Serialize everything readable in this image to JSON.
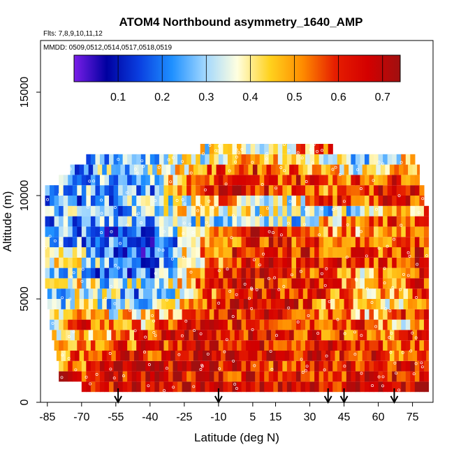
{
  "chart_data": {
    "type": "heatmap",
    "title": "ATOM4 Northbound asymmetry_1640_AMP",
    "flights_label": "Flts: 7,8,9,10,11,12",
    "dates_label": "MMDD: 0509,0512,0514,0517,0518,0519",
    "xlabel": "Latitude (deg N)",
    "ylabel": "Altitude (m)",
    "xlim": [
      -88,
      84
    ],
    "ylim": [
      0,
      17500
    ],
    "x_ticks": [
      "-85",
      "-70",
      "-55",
      "-40",
      "-25",
      "-10",
      "5",
      "15",
      "30",
      "45",
      "60",
      "75"
    ],
    "x_tick_values": [
      -85,
      -70,
      -55,
      -40,
      -25,
      -10,
      5,
      15,
      30,
      45,
      60,
      75
    ],
    "y_ticks": [
      "0",
      "5000",
      "10000",
      "15000"
    ],
    "y_tick_values": [
      0,
      5000,
      10000,
      15000
    ],
    "colorbar": {
      "ticks": [
        "0.1",
        "0.2",
        "0.3",
        "0.4",
        "0.5",
        "0.6",
        "0.7"
      ],
      "tick_values": [
        0.1,
        0.2,
        0.3,
        0.4,
        0.5,
        0.6,
        0.7
      ],
      "range": [
        0.0,
        0.74
      ],
      "colors": [
        "#7a1ee8",
        "#0000a0",
        "#0a3fe0",
        "#1e90ff",
        "#9fd6ff",
        "#ffffe0",
        "#ffd21e",
        "#ff8c00",
        "#e61e00",
        "#d40000",
        "#a01010"
      ]
    },
    "arrow_latitudes": [
      -54,
      -10,
      38,
      45,
      67
    ],
    "altitude_levels": [
      500,
      1000,
      1500,
      2000,
      2500,
      3000,
      3500,
      4000,
      4500,
      5000,
      5500,
      6000,
      6500,
      7000,
      7500,
      8000,
      8500,
      9000,
      9500,
      10000,
      10500,
      11000,
      11500,
      12000
    ],
    "latitude_extent_by_level": [
      [
        -70,
        82
      ],
      [
        -80,
        82
      ],
      [
        -80,
        82
      ],
      [
        -81,
        82
      ],
      [
        -82,
        82
      ],
      [
        -83,
        82
      ],
      [
        -84,
        82
      ],
      [
        -84,
        82
      ],
      [
        -85,
        82
      ],
      [
        -85,
        82
      ],
      [
        -86,
        82
      ],
      [
        -86,
        82
      ],
      [
        -86,
        82
      ],
      [
        -86,
        82
      ],
      [
        -86,
        82
      ],
      [
        -86,
        82
      ],
      [
        -86,
        82
      ],
      [
        -86,
        82
      ],
      [
        -86,
        80
      ],
      [
        -86,
        80
      ],
      [
        -80,
        78
      ],
      [
        -75,
        78
      ],
      [
        -68,
        76
      ],
      [
        -18,
        40
      ]
    ],
    "sampled_values": [
      [
        0.65,
        0.66,
        0.66,
        0.67,
        0.68,
        0.68,
        0.67,
        0.66,
        0.66,
        0.67,
        0.68,
        0.66
      ],
      [
        0.6,
        0.64,
        0.66,
        0.68,
        0.66,
        0.63,
        0.66,
        0.66,
        0.64,
        0.64,
        0.66,
        0.65
      ],
      [
        0.4,
        0.52,
        0.64,
        0.66,
        0.67,
        0.66,
        0.63,
        0.6,
        0.6,
        0.64,
        0.66,
        0.64
      ],
      [
        0.45,
        0.58,
        0.6,
        0.6,
        0.66,
        0.66,
        0.66,
        0.65,
        0.6,
        0.62,
        0.55,
        0.64
      ],
      [
        0.4,
        0.58,
        0.56,
        0.58,
        0.66,
        0.67,
        0.66,
        0.62,
        0.62,
        0.6,
        0.55,
        0.62
      ],
      [
        0.38,
        0.5,
        0.5,
        0.56,
        0.66,
        0.66,
        0.64,
        0.62,
        0.6,
        0.58,
        0.55,
        0.6
      ],
      [
        0.35,
        0.58,
        0.5,
        0.48,
        0.62,
        0.62,
        0.64,
        0.6,
        0.62,
        0.58,
        0.4,
        0.6
      ],
      [
        0.3,
        0.45,
        0.4,
        0.45,
        0.5,
        0.64,
        0.66,
        0.62,
        0.55,
        0.45,
        0.58,
        0.6
      ],
      [
        0.25,
        0.35,
        0.3,
        0.3,
        0.45,
        0.64,
        0.66,
        0.63,
        0.52,
        0.5,
        0.4,
        0.62
      ],
      [
        0.28,
        0.35,
        0.3,
        0.2,
        0.4,
        0.6,
        0.64,
        0.62,
        0.58,
        0.42,
        0.5,
        0.62
      ],
      [
        0.3,
        0.4,
        0.3,
        0.35,
        0.45,
        0.6,
        0.64,
        0.62,
        0.58,
        0.45,
        0.55,
        0.64
      ],
      [
        0.32,
        0.3,
        0.15,
        0.2,
        0.4,
        0.62,
        0.66,
        0.6,
        0.6,
        0.45,
        0.58,
        0.62
      ],
      [
        0.4,
        0.35,
        0.2,
        0.2,
        0.35,
        0.55,
        0.62,
        0.6,
        0.6,
        0.6,
        0.62,
        0.6
      ],
      [
        0.35,
        0.3,
        0.2,
        0.15,
        0.4,
        0.6,
        0.62,
        0.64,
        0.58,
        0.55,
        0.6,
        0.62
      ],
      [
        0.3,
        0.25,
        0.2,
        0.15,
        0.3,
        0.55,
        0.62,
        0.6,
        0.58,
        0.52,
        0.58,
        0.6
      ],
      [
        0.25,
        0.2,
        0.15,
        0.2,
        0.35,
        0.58,
        0.64,
        0.62,
        0.5,
        0.45,
        0.55,
        0.6
      ],
      [
        0.2,
        0.25,
        0.3,
        0.25,
        0.35,
        0.3,
        0.4,
        0.3,
        0.45,
        0.5,
        0.58,
        0.6
      ],
      [
        0.25,
        0.3,
        0.25,
        0.3,
        0.45,
        0.4,
        0.35,
        0.4,
        0.3,
        0.35,
        0.45,
        0.55
      ],
      [
        0.25,
        0.22,
        0.25,
        0.3,
        0.35,
        0.5,
        0.4,
        0.35,
        0.6,
        0.55,
        0.62,
        0.62
      ],
      [
        0.22,
        0.28,
        0.25,
        0.22,
        0.55,
        0.6,
        0.65,
        0.58,
        0.55,
        0.6,
        0.62,
        0.64
      ],
      [
        0.2,
        0.25,
        0.28,
        0.3,
        0.5,
        0.6,
        0.55,
        0.62,
        0.6,
        0.55,
        0.6,
        0.62
      ],
      [
        0.2,
        0.22,
        0.3,
        0.35,
        0.45,
        0.55,
        0.6,
        0.55,
        0.5,
        0.35,
        0.45,
        0.55
      ],
      [
        0.25,
        0.3,
        0.25,
        0.3,
        0.35,
        0.4,
        0.45,
        0.4,
        0.35,
        0.3,
        0.4,
        0.45
      ],
      [
        0.35,
        0.4,
        0.45,
        0.5,
        0.4,
        0.35,
        0.4,
        0.45,
        0.55,
        0.6,
        0.62,
        0.55
      ]
    ]
  }
}
